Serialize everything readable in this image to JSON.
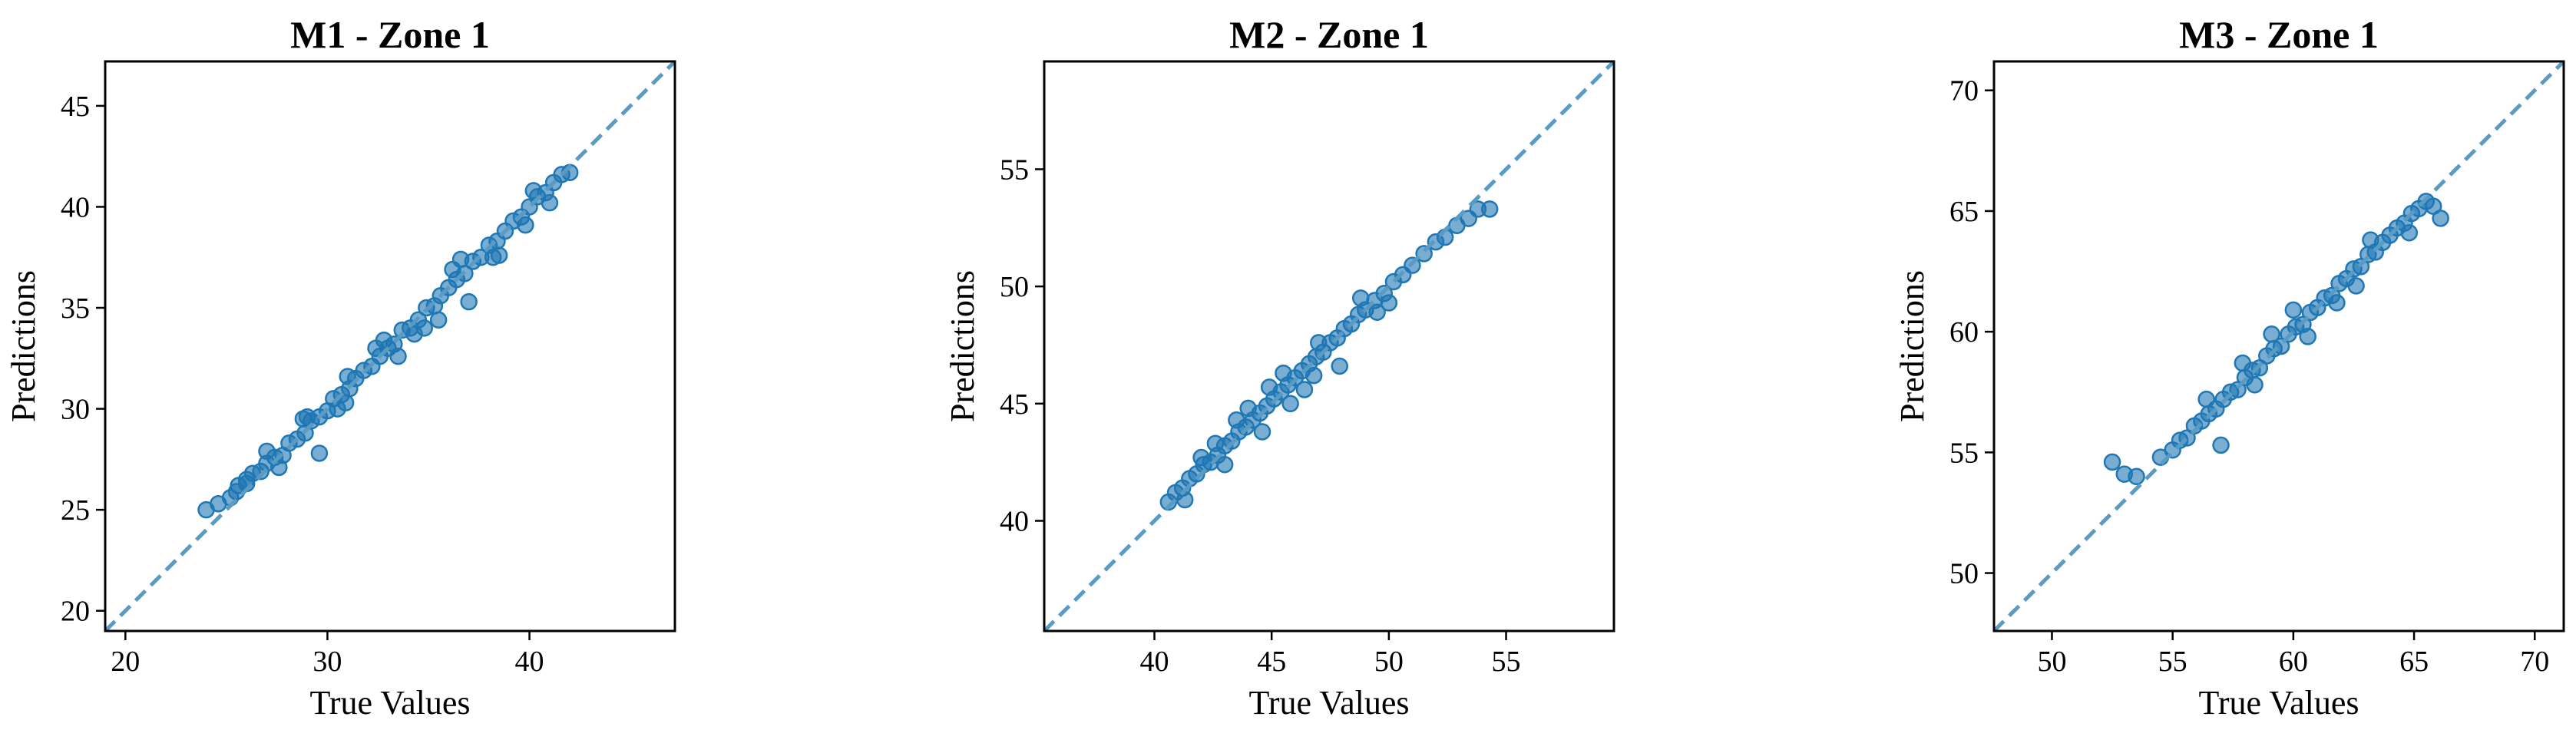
{
  "colors": {
    "marker": "#1f77b4",
    "diagonal": "#5a9bc4"
  },
  "chart_data": [
    {
      "type": "scatter",
      "title": "M1 - Zone 1",
      "xlabel": "True Values",
      "ylabel": "Predictions",
      "xlim": [
        19,
        47.2
      ],
      "ylim": [
        19,
        47.2
      ],
      "xticks": [
        "20",
        "30",
        "40"
      ],
      "yticks": [
        "20",
        "25",
        "30",
        "35",
        "40",
        "45"
      ],
      "xtick_values": [
        20,
        30,
        40
      ],
      "ytick_values": [
        20,
        25,
        30,
        35,
        40,
        45
      ],
      "reference_line": "y = x (dashed)",
      "points_x": [
        24.0,
        24.6,
        25.2,
        25.6,
        26.0,
        26.3,
        26.7,
        27.0,
        27.4,
        27.8,
        28.1,
        28.5,
        28.9,
        29.2,
        29.6,
        30.0,
        30.3,
        30.7,
        31.1,
        31.4,
        31.8,
        32.2,
        32.6,
        33.0,
        33.3,
        33.7,
        34.1,
        34.5,
        34.9,
        35.3,
        35.6,
        36.0,
        36.4,
        36.8,
        37.2,
        37.6,
        38.0,
        38.4,
        38.8,
        39.2,
        39.6,
        40.0,
        40.4,
        40.8,
        41.2,
        41.6,
        42.0,
        29.6,
        35.5,
        37.0,
        27.0,
        26.0,
        31.0,
        33.5,
        38.5,
        41.0,
        28.8,
        30.5,
        32.8,
        34.8,
        36.6,
        39.8,
        25.5,
        27.6,
        29.0,
        30.9,
        32.4,
        34.3,
        36.2,
        38.2,
        40.2
      ],
      "points_y": [
        25.0,
        25.3,
        25.6,
        26.2,
        26.3,
        26.8,
        26.9,
        27.3,
        27.6,
        27.7,
        28.3,
        28.5,
        28.8,
        29.4,
        29.6,
        29.9,
        30.5,
        30.7,
        31.0,
        31.5,
        31.9,
        32.1,
        32.6,
        33.0,
        33.2,
        33.9,
        34.0,
        34.4,
        35.0,
        35.1,
        35.6,
        36.0,
        36.4,
        36.7,
        37.3,
        37.5,
        38.1,
        38.3,
        38.8,
        39.3,
        39.5,
        40.0,
        40.5,
        40.7,
        41.2,
        41.6,
        41.7,
        27.8,
        34.4,
        35.3,
        27.9,
        26.5,
        31.6,
        32.6,
        37.6,
        40.2,
        29.5,
        30.0,
        33.4,
        34.0,
        37.4,
        39.1,
        25.9,
        27.1,
        29.6,
        30.3,
        33.0,
        33.7,
        36.9,
        37.5,
        40.8
      ]
    },
    {
      "type": "scatter",
      "title": "M2 - Zone 1",
      "xlabel": "True Values",
      "ylabel": "Predictions",
      "xlim": [
        35.3,
        59.6
      ],
      "ylim": [
        35.3,
        59.6
      ],
      "xticks": [
        "40",
        "45",
        "50",
        "55"
      ],
      "yticks": [
        "40",
        "45",
        "50",
        "55"
      ],
      "xtick_values": [
        40,
        45,
        50,
        55
      ],
      "ytick_values": [
        40,
        45,
        50,
        55
      ],
      "reference_line": "y = x (dashed)",
      "points_x": [
        40.6,
        40.9,
        41.2,
        41.5,
        41.8,
        42.1,
        42.4,
        42.7,
        43.0,
        43.3,
        43.6,
        43.9,
        44.2,
        44.5,
        44.8,
        45.1,
        45.4,
        45.7,
        46.0,
        46.3,
        46.6,
        46.9,
        47.2,
        47.5,
        47.8,
        48.1,
        48.4,
        48.7,
        49.0,
        49.4,
        49.8,
        50.2,
        50.6,
        51.0,
        51.5,
        52.0,
        52.4,
        52.9,
        53.4,
        53.8,
        54.3,
        47.9,
        43.5,
        44.6,
        45.5,
        46.4,
        42.6,
        41.3,
        48.8,
        50.0,
        44.0,
        45.8,
        47.0,
        43.0,
        42.0,
        49.5,
        46.8,
        44.9
      ],
      "points_y": [
        40.8,
        41.2,
        41.4,
        41.8,
        42.0,
        42.4,
        42.5,
        42.8,
        43.2,
        43.4,
        43.8,
        44.0,
        44.3,
        44.6,
        44.9,
        45.2,
        45.5,
        45.8,
        46.1,
        46.4,
        46.7,
        47.0,
        47.2,
        47.6,
        47.8,
        48.2,
        48.4,
        48.8,
        49.0,
        49.4,
        49.7,
        50.2,
        50.5,
        50.9,
        51.4,
        51.9,
        52.1,
        52.6,
        52.9,
        53.3,
        53.3,
        46.6,
        44.3,
        43.8,
        46.3,
        45.6,
        43.3,
        40.9,
        49.5,
        49.3,
        44.8,
        45.0,
        47.6,
        42.4,
        42.7,
        48.9,
        46.2,
        45.7
      ]
    },
    {
      "type": "scatter",
      "title": "M3 - Zone 1",
      "xlabel": "True Values",
      "ylabel": "Predictions",
      "xlim": [
        47.6,
        71.2
      ],
      "ylim": [
        47.6,
        71.2
      ],
      "xticks": [
        "50",
        "55",
        "60",
        "65",
        "70"
      ],
      "yticks": [
        "50",
        "55",
        "60",
        "65",
        "70"
      ],
      "xtick_values": [
        50,
        55,
        60,
        65,
        70
      ],
      "ytick_values": [
        50,
        55,
        60,
        65,
        70
      ],
      "reference_line": "y = x (dashed)",
      "points_x": [
        52.5,
        53.0,
        53.5,
        54.5,
        55.0,
        55.3,
        55.6,
        55.9,
        56.2,
        56.5,
        56.8,
        57.1,
        57.4,
        57.7,
        58.0,
        58.3,
        58.6,
        58.9,
        59.2,
        59.5,
        59.8,
        60.1,
        60.4,
        60.7,
        61.0,
        61.3,
        61.6,
        61.9,
        62.2,
        62.5,
        62.8,
        63.1,
        63.4,
        63.7,
        64.0,
        64.3,
        64.6,
        64.9,
        65.2,
        65.5,
        65.8,
        66.1,
        57.0,
        58.4,
        60.0,
        61.8,
        63.2,
        59.1,
        56.4,
        62.6,
        64.8,
        57.9,
        60.6
      ],
      "points_y": [
        54.6,
        54.1,
        54.0,
        54.8,
        55.1,
        55.5,
        55.6,
        56.1,
        56.3,
        56.6,
        56.8,
        57.2,
        57.5,
        57.6,
        58.1,
        58.4,
        58.5,
        59.0,
        59.3,
        59.4,
        59.9,
        60.2,
        60.3,
        60.8,
        61.0,
        61.4,
        61.5,
        62.0,
        62.2,
        62.6,
        62.7,
        63.2,
        63.3,
        63.7,
        64.0,
        64.3,
        64.5,
        64.9,
        65.1,
        65.4,
        65.2,
        64.7,
        55.3,
        57.8,
        60.9,
        61.2,
        63.8,
        59.9,
        57.2,
        61.9,
        64.1,
        58.7,
        59.8
      ]
    }
  ]
}
